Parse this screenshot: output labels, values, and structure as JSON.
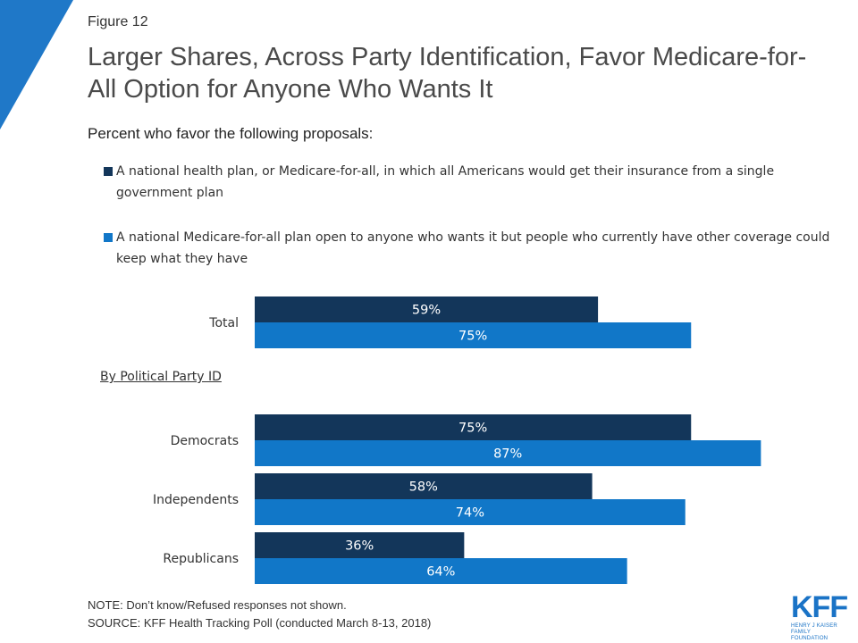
{
  "figure_label": "Figure 12",
  "title": "Larger Shares, Across Party Identification, Favor Medicare-for-All Option for Anyone Who Wants It",
  "subtitle": "Percent who favor the following proposals:",
  "group_label": "By Political Party ID",
  "note": "NOTE: Don’t know/Refused responses not shown.",
  "source": "SOURCE: KFF Health Tracking Poll (conducted March 8-13, 2018)",
  "logo": {
    "mark": "KFF",
    "line1": "HENRY J KAISER",
    "line2": "FAMILY FOUNDATION"
  },
  "colors": {
    "series1": "#13365a",
    "series2": "#1177c8",
    "accent": "#1f78c8"
  },
  "chart_data": {
    "type": "bar",
    "orientation": "horizontal",
    "categories": [
      "Total",
      "Democrats",
      "Independents",
      "Republicans"
    ],
    "series": [
      {
        "name": "A national health plan, or Medicare-for-all, in which all Americans would get their insurance from a single government plan",
        "values": [
          59,
          75,
          58,
          36
        ],
        "labels": [
          "59%",
          "75%",
          "58%",
          "36%"
        ]
      },
      {
        "name": "A national Medicare-for-all plan open to anyone who wants it but people who currently have other coverage could keep what they have",
        "values": [
          75,
          87,
          74,
          64
        ],
        "labels": [
          "75%",
          "87%",
          "74%",
          "64%"
        ]
      }
    ],
    "xlim": [
      0,
      100
    ],
    "grid": false,
    "legend": "top"
  }
}
